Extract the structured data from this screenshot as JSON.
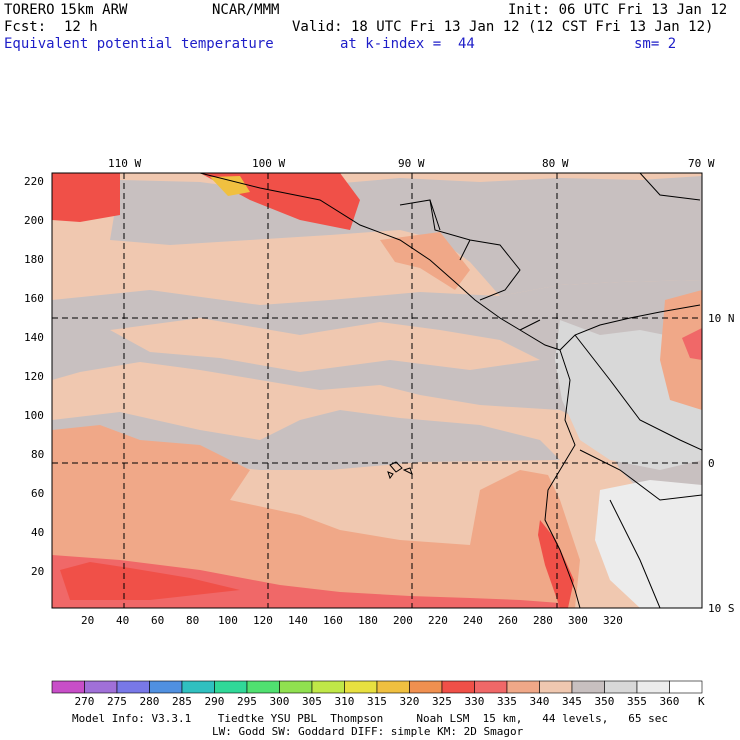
{
  "header": {
    "model": "TORERO",
    "resolution": "15km ARW",
    "org": "NCAR/MMM",
    "init": "Init: 06 UTC Fri 13 Jan 12",
    "fcst_label": "Fcst:",
    "fcst_value": "12 h",
    "valid": "Valid: 18 UTC Fri 13 Jan 12 (12 CST Fri 13 Jan 12)",
    "field": "Equivalent potential temperature",
    "level": "at k-index =  44",
    "smoothing": "sm= 2"
  },
  "map": {
    "lon_labels": [
      "110 W",
      "100 W",
      "90 W",
      "80 W",
      "70 W"
    ],
    "lat_labels": [
      "10 N",
      "0",
      "10 S"
    ],
    "y_ticks": [
      "220",
      "200",
      "180",
      "160",
      "140",
      "120",
      "100",
      "80",
      "60",
      "40",
      "20"
    ],
    "x_ticks": [
      "20",
      "40",
      "60",
      "80",
      "100",
      "120",
      "140",
      "160",
      "180",
      "200",
      "220",
      "240",
      "260",
      "280",
      "300",
      "320"
    ]
  },
  "colorbar": {
    "labels": [
      "270",
      "275",
      "280",
      "285",
      "290",
      "295",
      "300",
      "305",
      "310",
      "315",
      "320",
      "325",
      "330",
      "335",
      "340",
      "345",
      "350",
      "355",
      "360"
    ],
    "unit": "K",
    "colors": [
      "#c84ec8",
      "#a070d8",
      "#7878e8",
      "#5090e0",
      "#30c0c0",
      "#30d898",
      "#50e070",
      "#90e050",
      "#c0e848",
      "#e8e040",
      "#f0c040",
      "#f09050",
      "#f05048",
      "#f06868",
      "#f0a888",
      "#f0c8b0",
      "#c8c0c0",
      "#d8d8d8",
      "#ececec",
      "#ffffff"
    ]
  },
  "footer": {
    "line1": "Model Info: V3.3.1    Tiedtke YSU PBL  Thompson     Noah LSM  15 km,   44 levels,   65 sec",
    "line2": "LW: Godd SW: Goddard DIFF: simple KM: 2D Smagor"
  }
}
